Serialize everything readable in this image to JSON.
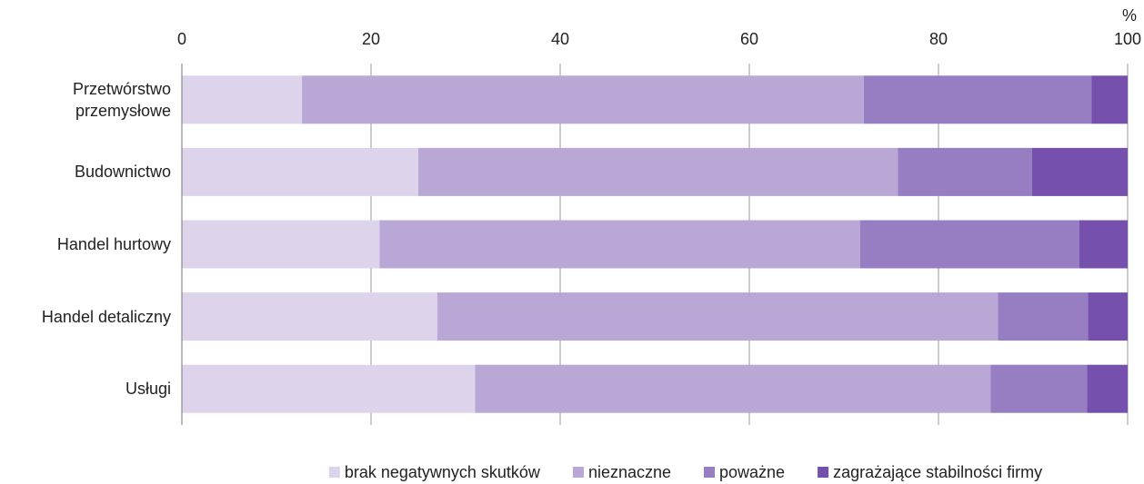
{
  "chart_data": {
    "type": "stacked_bar_horizontal",
    "xlabel": "%",
    "categories": [
      "Przetwórstwo przemysłowe",
      "Budownictwo",
      "Handel hurtowy",
      "Handel detaliczny",
      "Usługi"
    ],
    "series": [
      {
        "name": "brak negatywnych skutków",
        "color": "#ddd3ea",
        "values": [
          12.7,
          25.0,
          20.9,
          27.0,
          31.0
        ]
      },
      {
        "name": "nieznaczne",
        "color": "#b9a7d6",
        "values": [
          59.4,
          50.7,
          50.8,
          59.3,
          54.5
        ]
      },
      {
        "name": "poważne",
        "color": "#977dc2",
        "values": [
          24.1,
          14.2,
          23.2,
          9.5,
          10.2
        ]
      },
      {
        "name": "zagrażające stabilności firmy",
        "color": "#7550ad",
        "values": [
          3.8,
          10.1,
          5.1,
          4.2,
          4.3
        ]
      }
    ],
    "xlim": [
      0,
      100
    ],
    "xticks": [
      0,
      20,
      40,
      60,
      80,
      100
    ],
    "grid": true,
    "legend": "bottom"
  }
}
